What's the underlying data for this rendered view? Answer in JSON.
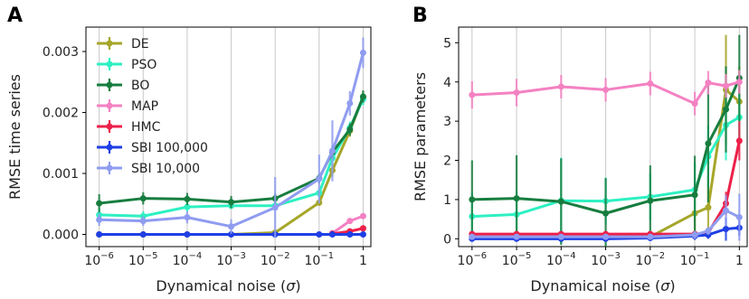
{
  "chart_data": [
    {
      "type": "line",
      "panel": "A",
      "xlabel_prefix": "Dynamical noise (",
      "xlabel_symbol": "σ",
      "xlabel_suffix": ")",
      "ylabel": "RMSE time series",
      "xscale": "log",
      "xlim": [
        5e-07,
        1.5
      ],
      "ylim": [
        -0.0002,
        0.0034
      ],
      "grid": "vertical",
      "legend_position": "top-left",
      "xticks": [
        {
          "base": "10",
          "exp": "−6",
          "value": 1e-06
        },
        {
          "base": "10",
          "exp": "−5",
          "value": 1e-05
        },
        {
          "base": "10",
          "exp": "−4",
          "value": 0.0001
        },
        {
          "base": "10",
          "exp": "−3",
          "value": 0.001
        },
        {
          "base": "10",
          "exp": "−2",
          "value": 0.01
        },
        {
          "base": "10",
          "exp": "−1",
          "value": 0.1
        },
        {
          "base": "1",
          "exp": "",
          "value": 1
        }
      ],
      "yticks": [
        {
          "label": "0.000",
          "value": 0.0
        },
        {
          "label": "0.001",
          "value": 0.001
        },
        {
          "label": "0.002",
          "value": 0.002
        },
        {
          "label": "0.003",
          "value": 0.003
        }
      ],
      "series": [
        {
          "name": "DE",
          "color": "#a6a62a",
          "points": [
            [
              1e-06,
              0.0,
              0
            ],
            [
              1e-05,
              0.0,
              0
            ],
            [
              0.0001,
              0.0,
              0
            ],
            [
              0.001,
              0.0,
              0
            ],
            [
              0.01,
              3e-05,
              2e-05
            ],
            [
              0.1,
              0.00052,
              5e-05
            ],
            [
              0.2,
              0.00105,
              0.0001
            ],
            [
              0.5,
              0.0017,
              0.0001
            ],
            [
              1,
              0.00225,
              0.0001
            ]
          ]
        },
        {
          "name": "PSO",
          "color": "#2ef0c2",
          "points": [
            [
              1e-06,
              0.00032,
              0.00012
            ],
            [
              1e-05,
              0.0003,
              8e-05
            ],
            [
              0.0001,
              0.00045,
              8e-05
            ],
            [
              0.001,
              0.00047,
              5e-05
            ],
            [
              0.01,
              0.00047,
              5e-05
            ],
            [
              0.1,
              0.00068,
              8e-05
            ],
            [
              0.2,
              0.00125,
              0.0001
            ],
            [
              0.5,
              0.00175,
              0.0001
            ],
            [
              1,
              0.00222,
              0.0001
            ]
          ]
        },
        {
          "name": "BO",
          "color": "#177d3f",
          "points": [
            [
              1e-06,
              0.00051,
              0.00015
            ],
            [
              1e-05,
              0.00059,
              0.0001
            ],
            [
              0.0001,
              0.00058,
              0.0001
            ],
            [
              0.001,
              0.00053,
              0.0001
            ],
            [
              0.01,
              0.00059,
              8e-05
            ],
            [
              0.1,
              0.00092,
              8e-05
            ],
            [
              0.2,
              0.00135,
              0.0001
            ],
            [
              0.5,
              0.00172,
              0.0001
            ],
            [
              1,
              0.00226,
              0.0001
            ]
          ]
        },
        {
          "name": "MAP",
          "color": "#f481c2",
          "points": [
            [
              0.2,
              2e-05,
              1e-05
            ],
            [
              0.5,
              0.00022,
              3e-05
            ],
            [
              1,
              0.0003,
              3e-05
            ]
          ]
        },
        {
          "name": "HMC",
          "color": "#ed2049",
          "points": [
            [
              0.2,
              1e-05,
              1e-05
            ],
            [
              0.5,
              5e-05,
              2e-05
            ],
            [
              1,
              0.0001,
              3e-05
            ]
          ]
        },
        {
          "name": "SBI 100,000",
          "color": "#1f3fe4",
          "points": [
            [
              1e-06,
              0.0,
              2e-05
            ],
            [
              1e-05,
              0.0,
              1e-05
            ],
            [
              0.0001,
              0.0,
              1e-05
            ],
            [
              0.001,
              0.0,
              1e-05
            ],
            [
              0.01,
              0.0,
              1e-05
            ],
            [
              0.1,
              0.0,
              1e-05
            ],
            [
              0.2,
              0.0,
              1e-05
            ],
            [
              0.5,
              0.0,
              1e-05
            ],
            [
              1,
              0.0,
              1e-05
            ]
          ]
        },
        {
          "name": "SBI 10,000",
          "color": "#8f9cf0",
          "points": [
            [
              1e-06,
              0.00024,
              0.0001
            ],
            [
              1e-05,
              0.00022,
              8e-05
            ],
            [
              0.0001,
              0.00028,
              0.0001
            ],
            [
              0.001,
              0.00013,
              0.00012
            ],
            [
              0.01,
              0.00044,
              0.0005
            ],
            [
              0.1,
              0.00091,
              0.0004
            ],
            [
              0.2,
              0.00137,
              0.0005
            ],
            [
              0.5,
              0.00215,
              0.0002
            ],
            [
              1,
              0.00298,
              0.00025
            ]
          ]
        }
      ]
    },
    {
      "type": "line",
      "panel": "B",
      "xlabel_prefix": "Dynamical noise (",
      "xlabel_symbol": "σ",
      "xlabel_suffix": ")",
      "ylabel": "RMSE parameters",
      "xscale": "log",
      "xlim": [
        5e-07,
        1.5
      ],
      "ylim": [
        -0.2,
        5.4
      ],
      "grid": "vertical",
      "xticks": [
        {
          "base": "10",
          "exp": "−6",
          "value": 1e-06
        },
        {
          "base": "10",
          "exp": "−5",
          "value": 1e-05
        },
        {
          "base": "10",
          "exp": "−4",
          "value": 0.0001
        },
        {
          "base": "10",
          "exp": "−3",
          "value": 0.001
        },
        {
          "base": "10",
          "exp": "−2",
          "value": 0.01
        },
        {
          "base": "10",
          "exp": "−1",
          "value": 0.1
        },
        {
          "base": "1",
          "exp": "",
          "value": 1
        }
      ],
      "yticks": [
        {
          "label": "0",
          "value": 0
        },
        {
          "label": "1",
          "value": 1
        },
        {
          "label": "2",
          "value": 2
        },
        {
          "label": "3",
          "value": 3
        },
        {
          "label": "4",
          "value": 4
        },
        {
          "label": "5",
          "value": 5
        }
      ],
      "series": [
        {
          "name": "DE",
          "color": "#a6a62a",
          "points": [
            [
              1e-06,
              0.05,
              0.05
            ],
            [
              1e-05,
              0.05,
              0.05
            ],
            [
              0.0001,
              0.05,
              0.05
            ],
            [
              0.001,
              0.05,
              0.05
            ],
            [
              0.01,
              0.05,
              0.05
            ],
            [
              0.1,
              0.65,
              0.6
            ],
            [
              0.2,
              0.8,
              0.8
            ],
            [
              0.5,
              3.8,
              1.4
            ],
            [
              1,
              3.5,
              0.9
            ]
          ]
        },
        {
          "name": "PSO",
          "color": "#2ef0c2",
          "points": [
            [
              1e-06,
              0.57,
              0.6
            ],
            [
              1e-05,
              0.62,
              0.6
            ],
            [
              0.0001,
              0.97,
              1.1
            ],
            [
              0.001,
              0.96,
              0.6
            ],
            [
              0.01,
              1.07,
              0.6
            ],
            [
              0.1,
              1.25,
              0.7
            ],
            [
              0.2,
              2.1,
              0.8
            ],
            [
              0.5,
              2.9,
              0.9
            ],
            [
              1,
              3.1,
              0.6
            ]
          ]
        },
        {
          "name": "BO",
          "color": "#177d3f",
          "points": [
            [
              1e-06,
              1.0,
              1.0
            ],
            [
              1e-05,
              1.03,
              1.1
            ],
            [
              0.0001,
              0.95,
              1.1
            ],
            [
              0.001,
              0.65,
              0.9
            ],
            [
              0.01,
              0.97,
              0.9
            ],
            [
              0.1,
              1.12,
              1.0
            ],
            [
              0.2,
              2.43,
              1.5
            ],
            [
              0.5,
              3.3,
              1.1
            ],
            [
              1,
              4.1,
              1.1
            ]
          ]
        },
        {
          "name": "MAP",
          "color": "#f481c2",
          "points": [
            [
              1e-06,
              3.67,
              0.35
            ],
            [
              1e-05,
              3.73,
              0.35
            ],
            [
              0.0001,
              3.88,
              0.3
            ],
            [
              0.001,
              3.8,
              0.3
            ],
            [
              0.01,
              3.96,
              0.3
            ],
            [
              0.1,
              3.45,
              0.3
            ],
            [
              0.2,
              3.98,
              0.3
            ],
            [
              0.5,
              3.9,
              0.3
            ],
            [
              1,
              4.0,
              0.3
            ]
          ]
        },
        {
          "name": "HMC",
          "color": "#ed2049",
          "points": [
            [
              1e-06,
              0.12,
              0.05
            ],
            [
              1e-05,
              0.12,
              0.05
            ],
            [
              0.0001,
              0.12,
              0.05
            ],
            [
              0.001,
              0.12,
              0.05
            ],
            [
              0.01,
              0.12,
              0.05
            ],
            [
              0.1,
              0.12,
              0.05
            ],
            [
              0.2,
              0.15,
              0.05
            ],
            [
              0.5,
              0.9,
              0.3
            ],
            [
              1,
              2.5,
              0.5
            ]
          ]
        },
        {
          "name": "SBI 100,000",
          "color": "#1f3fe4",
          "points": [
            [
              1e-06,
              0.0,
              0.05
            ],
            [
              1e-05,
              0.0,
              0.05
            ],
            [
              0.0001,
              0.0,
              0.05
            ],
            [
              0.001,
              0.0,
              0.05
            ],
            [
              0.01,
              0.02,
              0.05
            ],
            [
              0.1,
              0.07,
              0.1
            ],
            [
              0.2,
              0.1,
              0.1
            ],
            [
              0.5,
              0.25,
              0.3
            ],
            [
              1,
              0.28,
              0.2
            ]
          ]
        },
        {
          "name": "SBI 10,000",
          "color": "#8f9cf0",
          "points": [
            [
              1e-06,
              0.05,
              0.05
            ],
            [
              1e-05,
              0.05,
              0.05
            ],
            [
              0.0001,
              0.05,
              0.05
            ],
            [
              0.001,
              0.05,
              0.05
            ],
            [
              0.01,
              0.05,
              0.05
            ],
            [
              0.1,
              0.1,
              0.1
            ],
            [
              0.2,
              0.2,
              0.1
            ],
            [
              0.5,
              0.72,
              0.4
            ],
            [
              1,
              0.55,
              0.6
            ]
          ]
        }
      ]
    }
  ]
}
